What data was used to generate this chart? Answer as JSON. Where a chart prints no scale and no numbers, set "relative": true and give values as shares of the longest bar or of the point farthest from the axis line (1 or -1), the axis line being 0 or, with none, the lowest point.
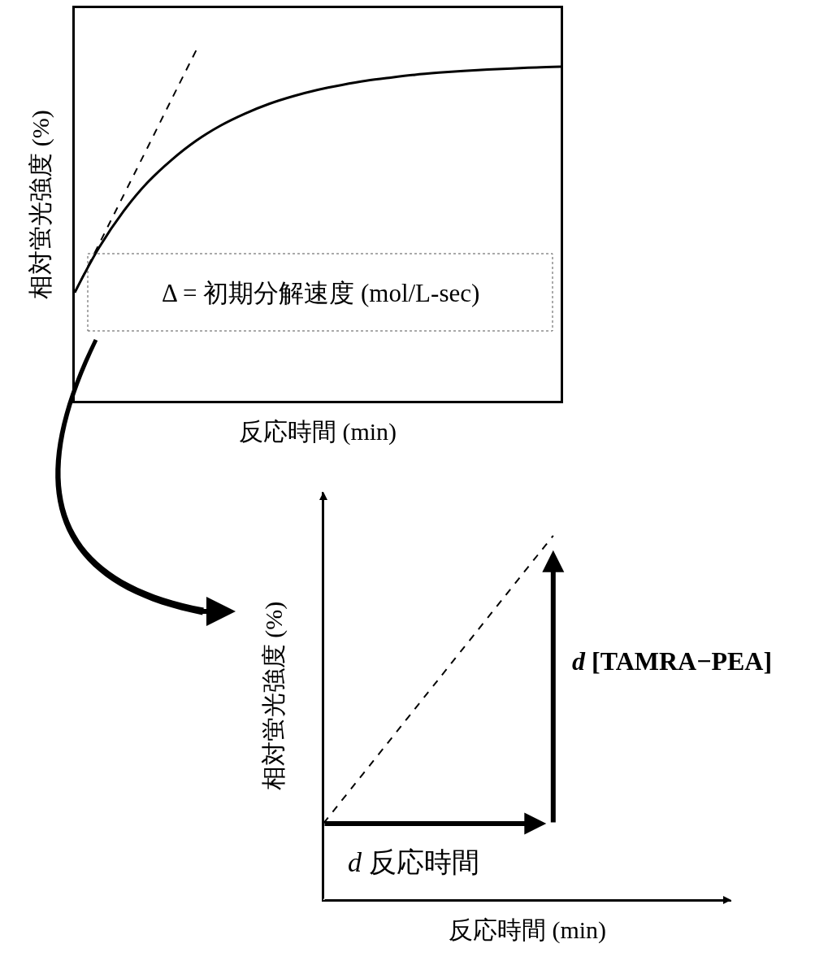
{
  "chart_data": [
    {
      "type": "line",
      "relative": true,
      "xlabel": "反応時間 (min)",
      "ylabel": "相対蛍光強度 (%)",
      "categories": [
        null,
        null,
        null,
        null,
        null,
        null,
        null,
        null,
        null,
        null,
        null,
        null,
        null,
        null,
        null,
        null,
        null,
        null,
        null,
        null,
        null
      ],
      "series": [
        {
          "color": "#000000",
          "line_style": "solid",
          "values": [
            0.309,
            0.437,
            0.54,
            0.623,
            0.688,
            0.742,
            0.785,
            0.819,
            0.847,
            0.869,
            0.887,
            0.901,
            0.913,
            0.922,
            0.93,
            0.936,
            0.941,
            0.945,
            0.948,
            0.951,
            0.953
          ]
        },
        {
          "color": "#000000",
          "line_style": "dashed",
          "values": [
            0.309,
            0.447,
            0.585,
            0.723,
            0.862,
            1.0,
            null,
            null,
            null,
            null,
            null,
            null,
            null,
            null,
            null,
            null,
            null,
            null,
            null,
            null,
            null
          ]
        }
      ],
      "annotations": [
        "Δ = 初期分解速度 (mol/L-sec)"
      ],
      "grid": false
    },
    {
      "type": "line",
      "relative": true,
      "xlabel": "反応時間 (min)",
      "ylabel": "相対蛍光強度 (%)",
      "categories": [
        null,
        null,
        null,
        null
      ],
      "series": [
        {
          "color": "#000000",
          "line_style": "dashed",
          "values": [
            0.21,
            0.605,
            1.0,
            null
          ]
        }
      ],
      "annotations": [
        "d 反応時間",
        "d [TAMRA−PEA]"
      ],
      "grid": false
    }
  ]
}
